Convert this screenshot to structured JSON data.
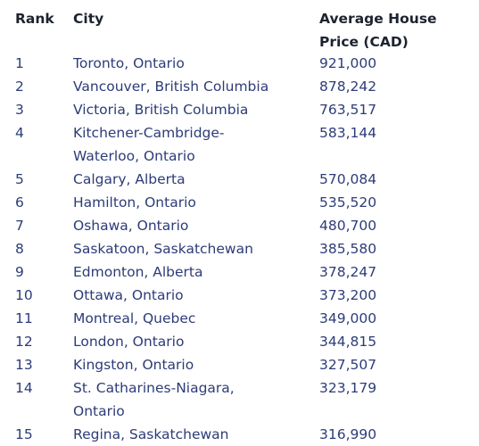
{
  "header": {
    "rank": "Rank",
    "city": "City",
    "price_line1": "Average House",
    "price_line2": "Price (CAD)"
  },
  "rows": [
    {
      "rank": "1",
      "city": "Toronto, Ontario",
      "price": "921,000"
    },
    {
      "rank": "2",
      "city": "Vancouver, British Columbia",
      "price": "878,242"
    },
    {
      "rank": "3",
      "city": "Victoria, British Columbia",
      "price": "763,517"
    },
    {
      "rank": "4",
      "city_line1": "Kitchener-Cambridge-",
      "city_line2": "Waterloo, Ontario",
      "price": "583,144"
    },
    {
      "rank": "5",
      "city": "Calgary, Alberta",
      "price": "570,084"
    },
    {
      "rank": "6",
      "city": "Hamilton, Ontario",
      "price": "535,520"
    },
    {
      "rank": "7",
      "city": "Oshawa, Ontario",
      "price": "480,700"
    },
    {
      "rank": "8",
      "city": "Saskatoon, Saskatchewan",
      "price": "385,580"
    },
    {
      "rank": "9",
      "city": "Edmonton, Alberta",
      "price": "378,247"
    },
    {
      "rank": "10",
      "city": "Ottawa, Ontario",
      "price": "373,200"
    },
    {
      "rank": "11",
      "city": "Montreal, Quebec",
      "price": "349,000"
    },
    {
      "rank": "12",
      "city": "London, Ontario",
      "price": "344,815"
    },
    {
      "rank": "13",
      "city": "Kingston, Ontario",
      "price": "327,507"
    },
    {
      "rank": "14",
      "city_line1": "St. Catharines-Niagara,",
      "city_line2": "Ontario",
      "price": "323,179"
    },
    {
      "rank": "15",
      "city": "Regina, Saskatchewan",
      "price": "316,990"
    }
  ]
}
